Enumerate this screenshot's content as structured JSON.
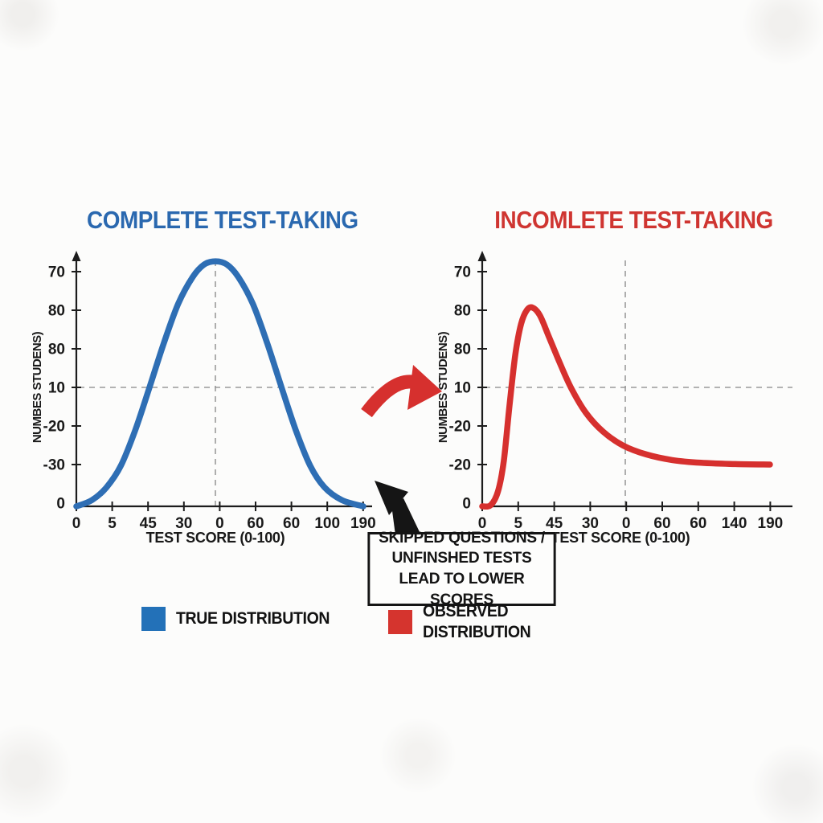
{
  "page": {
    "background": "#fcfcfb"
  },
  "colors": {
    "blue": "#2e6eb4",
    "red": "#d6302e",
    "ink": "#1c1c1c",
    "dash": "#9a9a9a"
  },
  "chart_data": [
    {
      "type": "line",
      "title": "COMPLETE TEST-TAKING",
      "title_color": "#2a68af",
      "xlabel": "TEST SCORE (0-100)",
      "ylabel": "NUMBES STUDENS)",
      "x_ticks": [
        "0",
        "5",
        "45",
        "30",
        "0",
        "60",
        "60",
        "100",
        "190"
      ],
      "y_ticks": [
        "70",
        "80",
        "80",
        "10",
        "-20",
        "-30",
        "0"
      ],
      "grid": "dashed crosshair: vertical at center peak, horizontal at '10' tick",
      "legend_position": "bottom",
      "series": [
        {
          "name": "TRUE DISTRIBUTION",
          "color": "#2e6eb4",
          "shape": "symmetric bell curve, peak at center of x-axis",
          "points": [
            [
              0.0,
              0.0
            ],
            [
              0.055,
              0.025
            ],
            [
              0.105,
              0.075
            ],
            [
              0.155,
              0.16
            ],
            [
              0.205,
              0.3
            ],
            [
              0.255,
              0.47
            ],
            [
              0.305,
              0.645
            ],
            [
              0.355,
              0.8
            ],
            [
              0.405,
              0.905
            ],
            [
              0.445,
              0.955
            ],
            [
              0.485,
              0.968
            ],
            [
              0.525,
              0.955
            ],
            [
              0.565,
              0.905
            ],
            [
              0.615,
              0.8
            ],
            [
              0.665,
              0.645
            ],
            [
              0.715,
              0.47
            ],
            [
              0.765,
              0.3
            ],
            [
              0.815,
              0.16
            ],
            [
              0.865,
              0.075
            ],
            [
              0.925,
              0.025
            ],
            [
              1.0,
              0.0
            ]
          ]
        }
      ]
    },
    {
      "type": "line",
      "title": "INCOMLETE TEST-TAKING",
      "title_color": "#cf3531",
      "xlabel": "TEST SCORE (0-100)",
      "ylabel": "NUMBES STUDENS)",
      "x_ticks": [
        "0",
        "5",
        "45",
        "30",
        "0",
        "60",
        "60",
        "140",
        "190"
      ],
      "y_ticks": [
        "70",
        "80",
        "80",
        "10",
        "-20",
        "-20",
        "0"
      ],
      "grid": "dashed crosshair: vertical at center, horizontal at '10' tick",
      "legend_position": "bottom",
      "series": [
        {
          "name": "OBSERVED DISTRIBUTION",
          "color": "#d6302e",
          "shape": "right-skewed curve, sharp early peak then long low tail",
          "points": [
            [
              0.0,
              0.0
            ],
            [
              0.03,
              0.005
            ],
            [
              0.055,
              0.06
            ],
            [
              0.075,
              0.18
            ],
            [
              0.095,
              0.4
            ],
            [
              0.115,
              0.6
            ],
            [
              0.135,
              0.72
            ],
            [
              0.155,
              0.775
            ],
            [
              0.175,
              0.785
            ],
            [
              0.2,
              0.755
            ],
            [
              0.23,
              0.675
            ],
            [
              0.27,
              0.565
            ],
            [
              0.31,
              0.465
            ],
            [
              0.36,
              0.37
            ],
            [
              0.42,
              0.295
            ],
            [
              0.49,
              0.24
            ],
            [
              0.57,
              0.205
            ],
            [
              0.66,
              0.183
            ],
            [
              0.76,
              0.172
            ],
            [
              0.88,
              0.167
            ],
            [
              1.0,
              0.165
            ]
          ]
        }
      ]
    }
  ],
  "callout": {
    "lines": [
      "SKIPPED QUESTIONS /",
      "UNFINSHED TESTS",
      "LEAD TO LOWER SCORES"
    ]
  },
  "legend": {
    "items": [
      {
        "label": "TRUE DISTRIBUTION",
        "color": "#2371b8"
      },
      {
        "label": "OBSERVED DISTRIBUTION",
        "color": "#d5342e"
      }
    ]
  },
  "icons": {
    "transition_arrow": "red-curved-arrow-pointing-right",
    "callout_arrow": "black-arrow-pointing-up-left"
  }
}
